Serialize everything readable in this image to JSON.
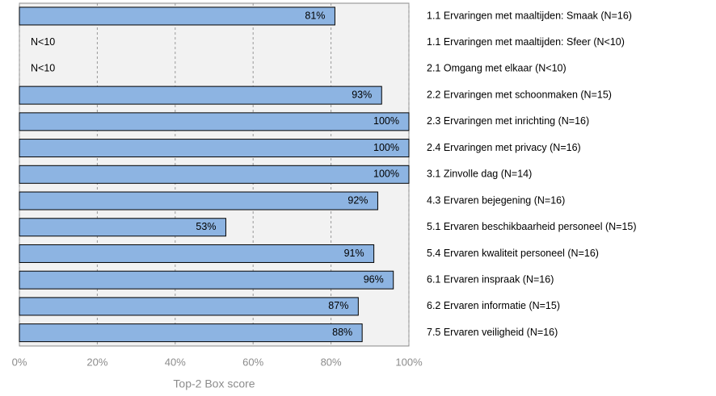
{
  "chart_data": {
    "type": "bar",
    "orientation": "horizontal",
    "categories": [
      "1.1 Ervaringen met maaltijden: Smaak (N=16)",
      "1.1 Ervaringen met maaltijden: Sfeer (N<10)",
      "2.1 Omgang met elkaar (N<10)",
      "2.2 Ervaringen met schoonmaken (N=15)",
      "2.3 Ervaringen met inrichting (N=16)",
      "2.4 Ervaringen met privacy (N=16)",
      "3.1 Zinvolle dag (N=14)",
      "4.3 Ervaren bejegening (N=16)",
      "5.1 Ervaren beschikbaarheid personeel (N=15)",
      "5.4 Ervaren kwaliteit personeel (N=16)",
      "6.1 Ervaren inspraak (N=16)",
      "6.2 Ervaren informatie (N=15)",
      "7.5 Ervaren veiligheid (N=16)"
    ],
    "values": [
      81,
      null,
      null,
      93,
      100,
      100,
      100,
      92,
      53,
      91,
      96,
      87,
      88
    ],
    "value_labels": [
      "81%",
      "N<10",
      "N<10",
      "93%",
      "100%",
      "100%",
      "100%",
      "92%",
      "53%",
      "91%",
      "96%",
      "87%",
      "88%"
    ],
    "color": "#8db4e2",
    "xlabel": "Top-2 Box score",
    "xlim": [
      0,
      100
    ],
    "xticks": [
      {
        "value": 0,
        "label": "0%"
      },
      {
        "value": 20,
        "label": "20%"
      },
      {
        "value": 40,
        "label": "40%"
      },
      {
        "value": 60,
        "label": "60%"
      },
      {
        "value": 80,
        "label": "80%"
      },
      {
        "value": 100,
        "label": "100%"
      }
    ],
    "grid": true
  }
}
